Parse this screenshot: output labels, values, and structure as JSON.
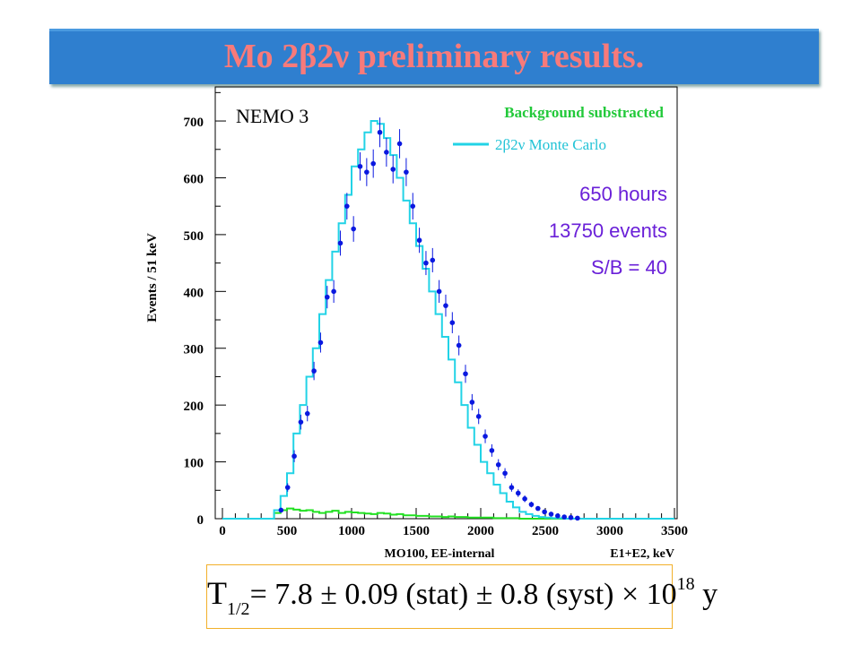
{
  "slide": {
    "title_prefix": "Mo 2",
    "title_beta": "β",
    "title_two": "2",
    "title_nu": "ν",
    "title_suffix": " preliminary results."
  },
  "chart_data": {
    "type": "histogram",
    "experiment_label": "NEMO 3",
    "background_label": "Background substracted",
    "legend": {
      "line_prefix": "2",
      "beta": "β",
      "two": "2",
      "nu": "ν",
      "line_suffix": " Monte Carlo",
      "color": "#22d3e6"
    },
    "stats": [
      "650 hours",
      "13750 events",
      "S/B = 40"
    ],
    "ylabel": "Events / 51 keV",
    "xlabel_left": "MO100, EE-internal",
    "xlabel_right": "E1+E2, keV",
    "xlim": [
      0,
      3500
    ],
    "ylim": [
      0,
      760
    ],
    "xticks": [
      0,
      500,
      1000,
      1500,
      2000,
      2500,
      3000,
      3500
    ],
    "yticks": [
      0,
      100,
      200,
      300,
      400,
      500,
      600,
      700
    ],
    "data_points": {
      "color": "#0a18e0",
      "x": [
        454,
        505,
        556,
        607,
        658,
        709,
        760,
        811,
        862,
        913,
        964,
        1015,
        1066,
        1117,
        1168,
        1219,
        1270,
        1321,
        1372,
        1423,
        1474,
        1525,
        1576,
        1627,
        1678,
        1729,
        1780,
        1831,
        1882,
        1933,
        1984,
        2035,
        2086,
        2137,
        2188,
        2239,
        2290,
        2341,
        2392,
        2443,
        2494,
        2545,
        2596,
        2647,
        2698,
        2749
      ],
      "y": [
        15,
        55,
        110,
        170,
        185,
        260,
        310,
        390,
        400,
        485,
        550,
        510,
        620,
        610,
        625,
        680,
        645,
        615,
        660,
        610,
        550,
        490,
        450,
        455,
        400,
        375,
        345,
        305,
        255,
        205,
        180,
        145,
        120,
        95,
        80,
        55,
        45,
        35,
        25,
        18,
        12,
        8,
        5,
        3,
        2,
        1
      ]
    },
    "monte_carlo": {
      "color": "#22d3e6",
      "x": [
        350,
        400,
        450,
        500,
        550,
        600,
        650,
        700,
        750,
        800,
        850,
        900,
        950,
        1000,
        1050,
        1100,
        1150,
        1200,
        1250,
        1300,
        1350,
        1400,
        1450,
        1500,
        1550,
        1600,
        1650,
        1700,
        1750,
        1800,
        1850,
        1900,
        1950,
        2000,
        2050,
        2100,
        2150,
        2200,
        2250,
        2300,
        2350,
        2400,
        2450,
        2500,
        2550,
        2600,
        2650,
        2700,
        2750
      ],
      "y": [
        0,
        15,
        40,
        80,
        150,
        200,
        250,
        300,
        360,
        420,
        470,
        520,
        570,
        620,
        650,
        680,
        700,
        695,
        670,
        640,
        600,
        560,
        520,
        480,
        440,
        400,
        360,
        320,
        280,
        240,
        200,
        160,
        130,
        100,
        80,
        60,
        45,
        30,
        20,
        12,
        8,
        5,
        3,
        2,
        1,
        1,
        0,
        0,
        0
      ]
    },
    "background": {
      "color": "#22e022",
      "x": [
        350,
        400,
        450,
        500,
        550,
        600,
        650,
        700,
        750,
        800,
        850,
        900,
        950,
        1000,
        1050,
        1100,
        1150,
        1200,
        1250,
        1300,
        1350,
        1400,
        1450,
        1500,
        1550,
        1600,
        1650,
        1700,
        1750,
        1800,
        1850,
        1900,
        1950,
        2000,
        2050,
        2100,
        2150,
        2200,
        2250,
        2300,
        2350,
        2400,
        2450,
        2500,
        2550,
        2600,
        2650,
        2700,
        2750
      ],
      "y": [
        0,
        10,
        15,
        18,
        16,
        14,
        15,
        12,
        10,
        12,
        14,
        10,
        12,
        11,
        10,
        9,
        8,
        10,
        9,
        7,
        8,
        6,
        6,
        5,
        5,
        4,
        4,
        3,
        4,
        3,
        3,
        2,
        2,
        2,
        2,
        1,
        1,
        1,
        1,
        0,
        0,
        0,
        0,
        0,
        0,
        0,
        0,
        0,
        0
      ]
    }
  },
  "formula": {
    "T": "T",
    "sub": "1/2",
    "eq": "= 7.8 ± 0.09 (stat) ± 0.8 (syst) × 10",
    "exp": "18",
    "unit": " y"
  }
}
